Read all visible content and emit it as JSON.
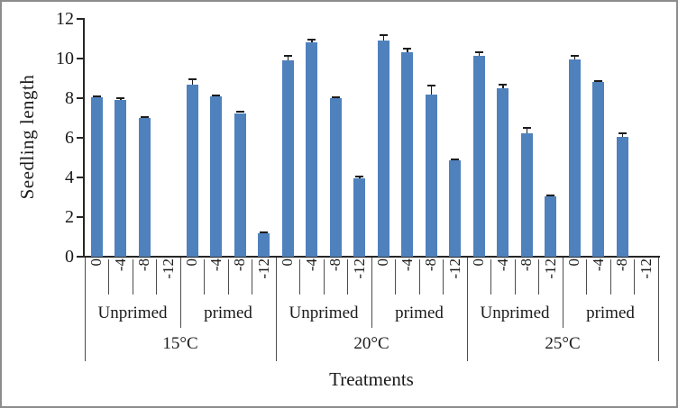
{
  "figure": {
    "background": "#ffffff",
    "border_color": "#8c8c8c"
  },
  "chart_data": {
    "type": "bar",
    "title": "",
    "xlabel": "Treatments",
    "ylabel": "Seedling length",
    "ylim": [
      0,
      12
    ],
    "yticks": [
      0,
      2,
      4,
      6,
      8,
      10,
      12
    ],
    "grid": false,
    "legend_position": "none",
    "bar_color": "#4f81bd",
    "error_bar_color": "#1c1c1c",
    "axis_color": "#262626",
    "separator_color": "#4d4d4d",
    "categories": [
      "0",
      "-4",
      "-8",
      "-12"
    ],
    "groups": [
      {
        "label": "15°C",
        "subgroups": [
          {
            "label": "Unprimed",
            "values": [
              8.05,
              7.9,
              7.0,
              0
            ],
            "errors": [
              0.05,
              0.08,
              0.05,
              0
            ]
          },
          {
            "label": "primed",
            "values": [
              8.7,
              8.1,
              7.25,
              1.2
            ],
            "errors": [
              0.25,
              0.05,
              0.08,
              0.05
            ]
          }
        ]
      },
      {
        "label": "20°C",
        "subgroups": [
          {
            "label": "Unprimed",
            "values": [
              9.9,
              10.8,
              8.0,
              3.95
            ],
            "errors": [
              0.25,
              0.15,
              0.05,
              0.08
            ]
          },
          {
            "label": "primed",
            "values": [
              10.9,
              10.3,
              8.2,
              4.85
            ],
            "errors": [
              0.3,
              0.2,
              0.45,
              0.08
            ]
          }
        ]
      },
      {
        "label": "25°C",
        "subgroups": [
          {
            "label": "Unprimed",
            "values": [
              10.15,
              8.5,
              6.25,
              3.05
            ],
            "errors": [
              0.15,
              0.2,
              0.25,
              0.06
            ]
          },
          {
            "label": "primed",
            "values": [
              9.95,
              8.8,
              6.05,
              0
            ],
            "errors": [
              0.2,
              0.08,
              0.2,
              0
            ]
          }
        ]
      }
    ]
  }
}
